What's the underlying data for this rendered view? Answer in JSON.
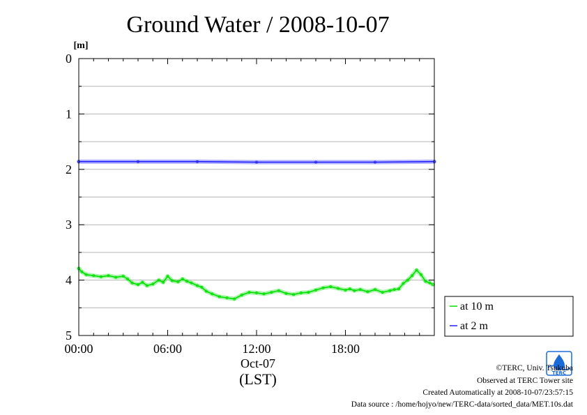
{
  "chart_data": {
    "type": "line",
    "title": "Ground Water / 2008-10-07",
    "ylabel": "[m]",
    "xlabel": "(LST)",
    "ylim": [
      0,
      5
    ],
    "y_inverted": true,
    "y_ticks": [
      "0",
      "1",
      "2",
      "3",
      "4",
      "5"
    ],
    "y_minor_step": 0.5,
    "x_range_hours": [
      0,
      24
    ],
    "x_ticks": [
      {
        "hour": 0,
        "label": "00:00"
      },
      {
        "hour": 6,
        "label": "06:00"
      },
      {
        "hour": 12,
        "label": "12:00"
      },
      {
        "hour": 18,
        "label": "18:00"
      }
    ],
    "date_label": "Oct-07",
    "grid": "horizontal",
    "legend_position": "right",
    "series": [
      {
        "name": "at 10 m",
        "color": "#00e000",
        "x_hours": [
          0.0,
          0.2,
          0.5,
          1.0,
          1.5,
          2.0,
          2.5,
          3.0,
          3.3,
          3.6,
          4.0,
          4.3,
          4.6,
          5.0,
          5.4,
          5.7,
          6.0,
          6.3,
          6.7,
          7.0,
          7.3,
          7.6,
          8.0,
          8.3,
          8.6,
          9.0,
          9.5,
          10.0,
          10.5,
          11.0,
          11.5,
          12.0,
          12.5,
          13.0,
          13.5,
          14.0,
          14.5,
          15.0,
          15.5,
          16.0,
          16.5,
          17.0,
          17.5,
          18.0,
          18.3,
          18.6,
          19.0,
          19.5,
          20.0,
          20.5,
          21.0,
          21.3,
          21.6,
          21.9,
          22.2,
          22.5,
          22.8,
          23.1,
          23.4,
          23.7,
          23.9
        ],
        "values": [
          3.79,
          3.85,
          3.9,
          3.92,
          3.94,
          3.92,
          3.95,
          3.93,
          3.98,
          4.05,
          4.08,
          4.04,
          4.1,
          4.07,
          4.0,
          4.04,
          3.93,
          4.01,
          4.03,
          3.98,
          4.02,
          4.05,
          4.1,
          4.13,
          4.2,
          4.25,
          4.3,
          4.32,
          4.34,
          4.27,
          4.22,
          4.23,
          4.25,
          4.22,
          4.19,
          4.24,
          4.26,
          4.23,
          4.22,
          4.18,
          4.14,
          4.12,
          4.15,
          4.18,
          4.16,
          4.19,
          4.17,
          4.21,
          4.17,
          4.22,
          4.19,
          4.17,
          4.16,
          4.06,
          4.0,
          3.92,
          3.82,
          3.9,
          4.02,
          4.05,
          4.08
        ]
      },
      {
        "name": "at 2 m",
        "color": "#2020ff",
        "x_hours": [
          0,
          4,
          8,
          12,
          16,
          20,
          24
        ],
        "values": [
          1.86,
          1.86,
          1.86,
          1.87,
          1.87,
          1.87,
          1.86
        ]
      }
    ]
  },
  "footer": {
    "copyright": "©TERC, Univ. Tsukuba",
    "observed": "Observed at TERC Tower site",
    "created": "Created Automatically at 2008-10-07/23:57:15",
    "source": "Data source : /home/hojyo/new/TERC-data/sorted_data/MET.10s.dat"
  },
  "logo": {
    "text": "TERC",
    "color": "#1a6bd8"
  }
}
